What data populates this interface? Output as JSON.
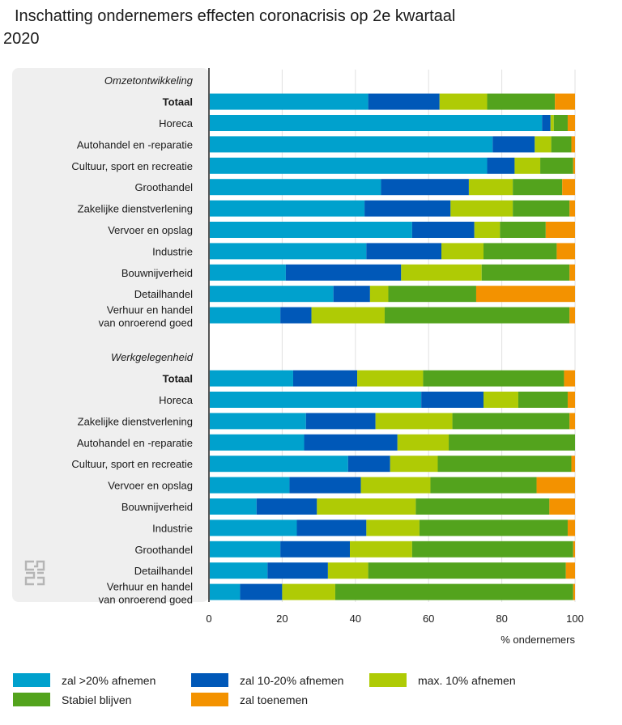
{
  "title": "Inschatting ondernemers effecten coronacrisis op 2e kwartaal 2020",
  "colors": {
    "decrease_more_20": "#00a1cd",
    "decrease_10_20": "#0058b8",
    "decrease_max_10": "#afcb05",
    "stable": "#53a31d",
    "increase": "#f39200",
    "panel": "#efefef",
    "axis": "#555555",
    "grid": "#e0e0e0"
  },
  "logo": "cbs",
  "chart_data": {
    "type": "bar",
    "orientation": "horizontal",
    "stacked": true,
    "xlabel": "% ondernemers",
    "xlim": [
      0,
      100
    ],
    "xticks": [
      0,
      20,
      40,
      60,
      80,
      100
    ],
    "grid": true,
    "legend_position": "bottom",
    "series": [
      {
        "name": "zal >20% afnemen",
        "color": "#00a1cd"
      },
      {
        "name": "zal 10-20% afnemen",
        "color": "#0058b8"
      },
      {
        "name": "max. 10% afnemen",
        "color": "#afcb05"
      },
      {
        "name": "Stabiel blijven",
        "color": "#53a31d"
      },
      {
        "name": "zal toenemen",
        "color": "#f39200"
      }
    ],
    "groups": [
      {
        "label": "Omzetontwikkeling",
        "categories": [
          {
            "label": "Totaal",
            "bold": true,
            "values": [
              43.5,
              19.5,
              13,
              18.5,
              5.5
            ]
          },
          {
            "label": "Horeca",
            "values": [
              91,
              2.3,
              0.9,
              3.8,
              2
            ]
          },
          {
            "label": "Autohandel en -reparatie",
            "values": [
              77.5,
              11.5,
              4.5,
              5.5,
              1
            ]
          },
          {
            "label": "Cultuur, sport en recreatie",
            "values": [
              76,
              7.5,
              7,
              9,
              0.5
            ]
          },
          {
            "label": "Groothandel",
            "values": [
              47,
              24,
              12,
              13.5,
              3.5
            ]
          },
          {
            "label": "Zakelijke dienstverlening",
            "values": [
              42.5,
              23.5,
              17,
              15.5,
              1.5
            ]
          },
          {
            "label": "Vervoer en opslag",
            "values": [
              55.5,
              17,
              7,
              12.5,
              8
            ]
          },
          {
            "label": "Industrie",
            "values": [
              43,
              20.5,
              11.5,
              20,
              5
            ]
          },
          {
            "label": "Bouwnijverheid",
            "values": [
              21,
              31.5,
              22,
              24,
              1.5
            ]
          },
          {
            "label": "Detailhandel",
            "values": [
              34,
              10,
              5,
              24,
              27
            ]
          },
          {
            "label": "Verhuur en handel van onroerend goed",
            "values": [
              19.5,
              8.5,
              20,
              50.5,
              1.5
            ]
          }
        ]
      },
      {
        "label": "Werkgelegenheid",
        "categories": [
          {
            "label": "Totaal",
            "bold": true,
            "values": [
              23,
              17.5,
              18,
              38.5,
              3
            ]
          },
          {
            "label": "Horeca",
            "values": [
              58,
              17,
              9.5,
              13.5,
              2
            ]
          },
          {
            "label": "Zakelijke dienstverlening",
            "values": [
              26.5,
              19,
              21,
              32,
              1.5
            ]
          },
          {
            "label": "Autohandel en -reparatie",
            "values": [
              26,
              25.5,
              14,
              34.5,
              0
            ]
          },
          {
            "label": "Cultuur, sport en recreatie",
            "values": [
              38,
              11.5,
              13,
              36.5,
              1
            ]
          },
          {
            "label": "Vervoer en opslag",
            "values": [
              22,
              19.5,
              19,
              29,
              10.5
            ]
          },
          {
            "label": "Bouwnijverheid",
            "values": [
              13,
              16.5,
              27,
              36.5,
              7
            ]
          },
          {
            "label": "Industrie",
            "values": [
              24,
              19,
              14.5,
              40.5,
              2
            ]
          },
          {
            "label": "Groothandel",
            "values": [
              19.5,
              19,
              17,
              44,
              0.5
            ]
          },
          {
            "label": "Detailhandel",
            "values": [
              16,
              16.5,
              11,
              54,
              2.5
            ]
          },
          {
            "label": "Verhuur en handel van onroerend goed",
            "values": [
              8.5,
              11.5,
              14.5,
              65,
              0.5
            ]
          }
        ]
      }
    ]
  }
}
